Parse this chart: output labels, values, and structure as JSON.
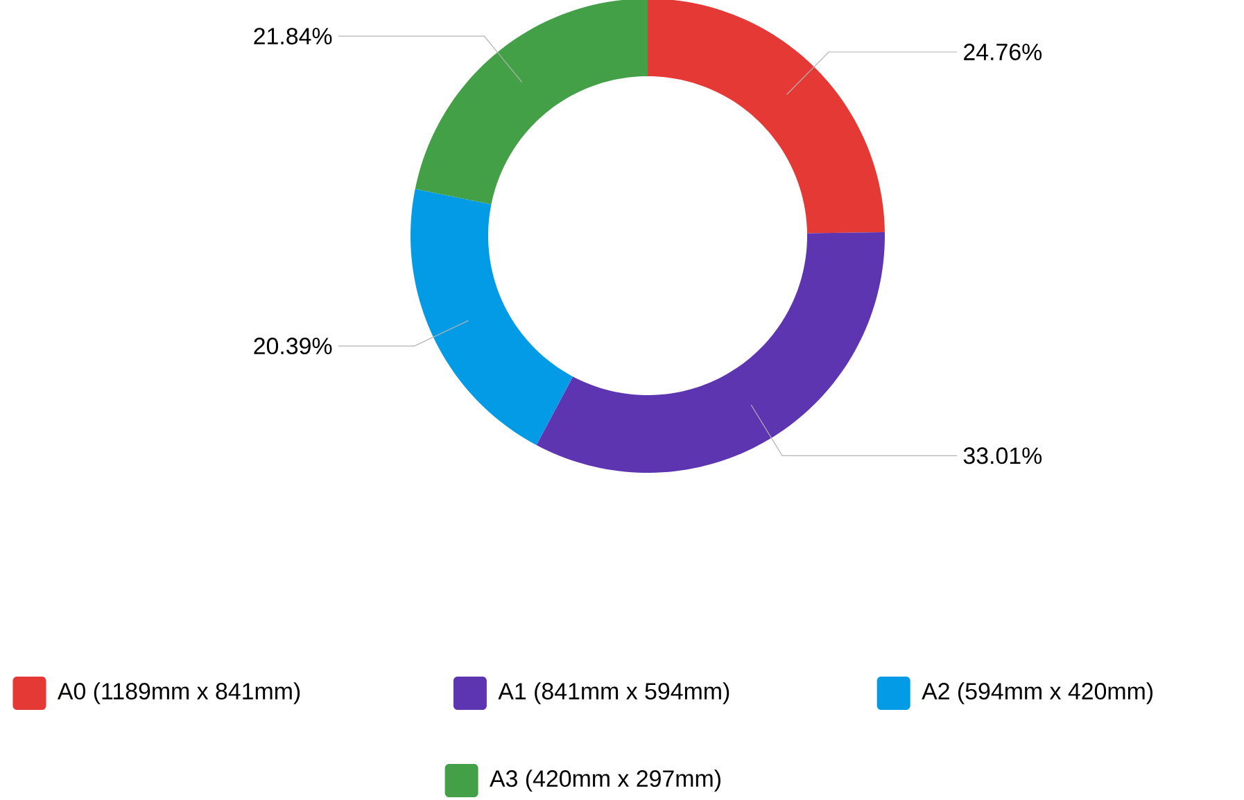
{
  "chart_data": {
    "type": "donut",
    "categories": [
      "A0 (1189mm x 841mm)",
      "A1 (841mm x 594mm)",
      "A2 (594mm x 420mm)",
      "A3 (420mm x 297mm)"
    ],
    "values": [
      24.76,
      33.01,
      20.39,
      21.84
    ],
    "value_labels": [
      "24.76%",
      "33.01%",
      "20.39%",
      "21.84%"
    ],
    "colors": [
      "#e53935",
      "#5e35b1",
      "#039be5",
      "#43a047"
    ],
    "legend": "bottom"
  }
}
